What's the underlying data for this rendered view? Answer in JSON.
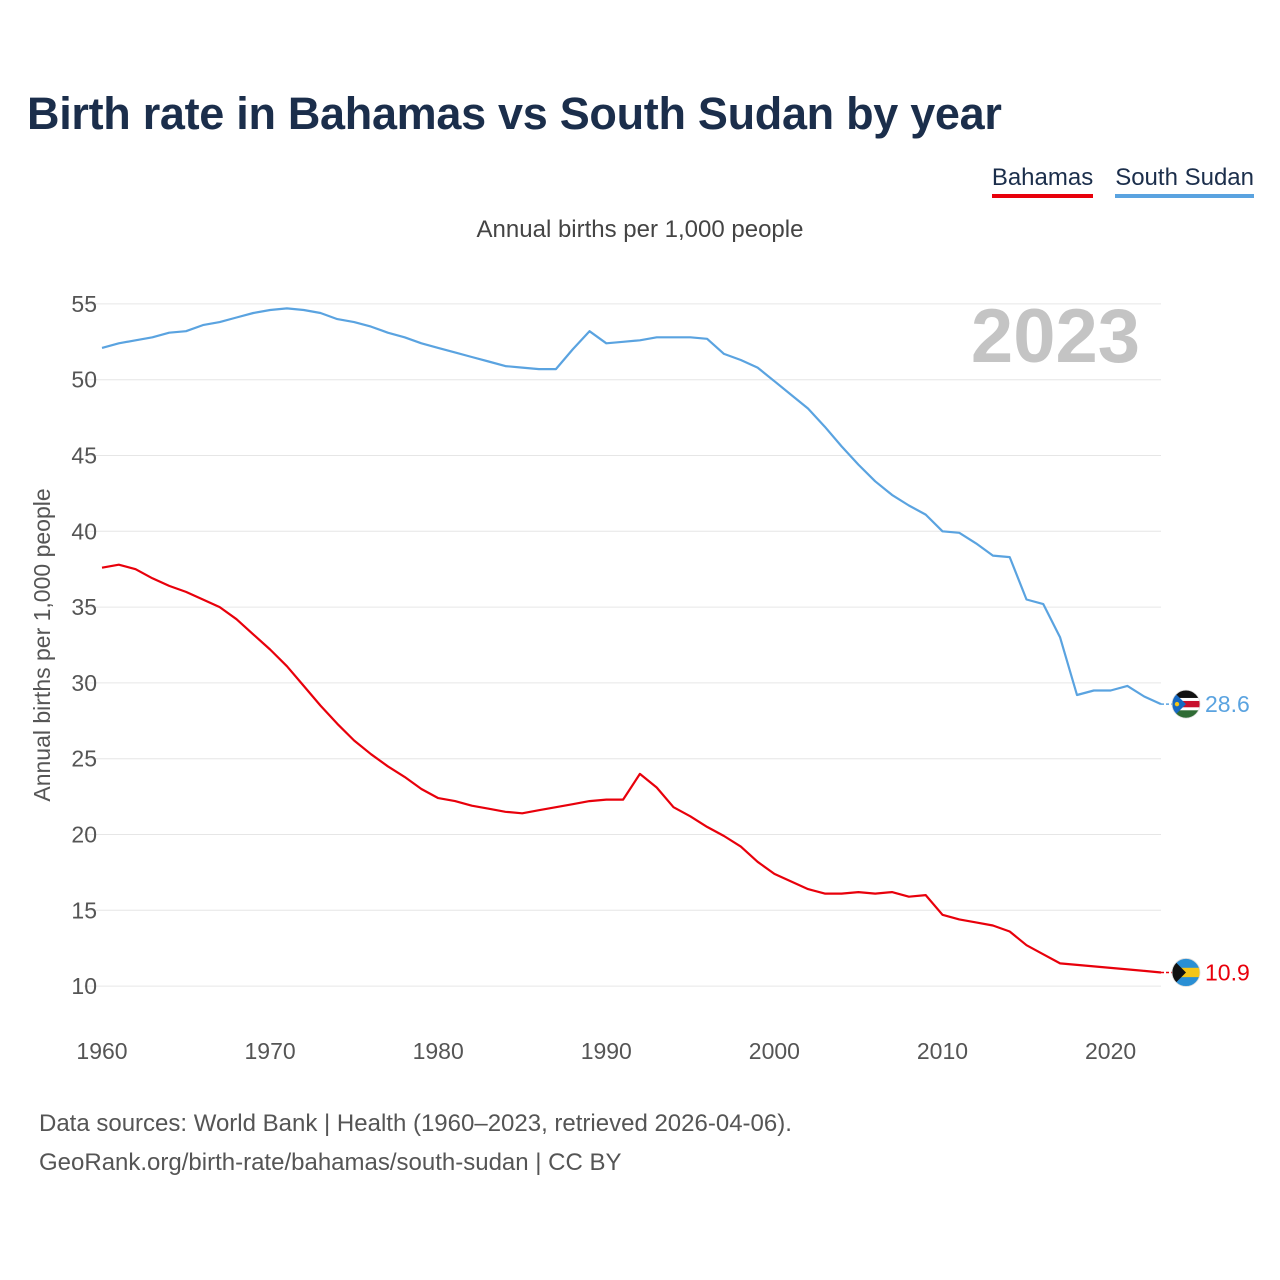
{
  "chart_data": {
    "type": "line",
    "title": "Birth rate in Bahamas vs South Sudan by year",
    "subtitle": "Annual births per 1,000 people",
    "ylabel": "Annual births per 1,000 people",
    "xlabel": "",
    "year_label": "2023",
    "xlim": [
      1960,
      2023
    ],
    "ylim": [
      7.5,
      57.5
    ],
    "x_ticks": [
      1960,
      1970,
      1980,
      1990,
      2000,
      2010,
      2020
    ],
    "y_ticks": [
      10,
      15,
      20,
      25,
      30,
      35,
      40,
      45,
      50,
      55
    ],
    "grid": true,
    "legend_position": "top-right",
    "x": [
      1960,
      1961,
      1962,
      1963,
      1964,
      1965,
      1966,
      1967,
      1968,
      1969,
      1970,
      1971,
      1972,
      1973,
      1974,
      1975,
      1976,
      1977,
      1978,
      1979,
      1980,
      1981,
      1982,
      1983,
      1984,
      1985,
      1986,
      1987,
      1988,
      1989,
      1990,
      1991,
      1992,
      1993,
      1994,
      1995,
      1996,
      1997,
      1998,
      1999,
      2000,
      2001,
      2002,
      2003,
      2004,
      2005,
      2006,
      2007,
      2008,
      2009,
      2010,
      2011,
      2012,
      2013,
      2014,
      2015,
      2016,
      2017,
      2018,
      2019,
      2020,
      2021,
      2022,
      2023
    ],
    "series": [
      {
        "name": "Bahamas",
        "color": "#e8000b",
        "end_label": "10.9",
        "values": [
          37.6,
          37.8,
          37.5,
          36.9,
          36.4,
          36.0,
          35.5,
          35.0,
          34.2,
          33.2,
          32.2,
          31.1,
          29.8,
          28.5,
          27.3,
          26.2,
          25.3,
          24.5,
          23.8,
          23.0,
          22.4,
          22.2,
          21.9,
          21.7,
          21.5,
          21.4,
          21.6,
          21.8,
          22.0,
          22.2,
          22.3,
          22.3,
          24.0,
          23.1,
          21.8,
          21.2,
          20.5,
          19.9,
          19.2,
          18.2,
          17.4,
          16.9,
          16.4,
          16.1,
          16.1,
          16.2,
          16.1,
          16.2,
          15.9,
          16.0,
          14.7,
          14.4,
          14.2,
          14.0,
          13.6,
          12.7,
          12.1,
          11.5,
          11.4,
          11.3,
          11.2,
          11.1,
          11.0,
          10.9
        ]
      },
      {
        "name": "South Sudan",
        "color": "#5aa3e0",
        "end_label": "28.6",
        "values": [
          52.1,
          52.4,
          52.6,
          52.8,
          53.1,
          53.2,
          53.6,
          53.8,
          54.1,
          54.4,
          54.6,
          54.7,
          54.6,
          54.4,
          54.0,
          53.8,
          53.5,
          53.1,
          52.8,
          52.4,
          52.1,
          51.8,
          51.5,
          51.2,
          50.9,
          50.8,
          50.7,
          50.7,
          52.0,
          53.2,
          52.4,
          52.5,
          52.6,
          52.8,
          52.8,
          52.8,
          52.7,
          51.7,
          51.3,
          50.8,
          49.9,
          49.0,
          48.1,
          46.9,
          45.6,
          44.4,
          43.3,
          42.4,
          41.7,
          41.1,
          40.0,
          39.9,
          39.2,
          38.4,
          38.3,
          35.5,
          35.2,
          33.0,
          29.2,
          29.5,
          29.5,
          29.8,
          29.1,
          28.6
        ]
      }
    ],
    "source_line1": "Data sources: World Bank | Health (1960–2023, retrieved 2026-04-06).",
    "source_line2": "GeoRank.org/birth-rate/bahamas/south-sudan | CC BY"
  }
}
